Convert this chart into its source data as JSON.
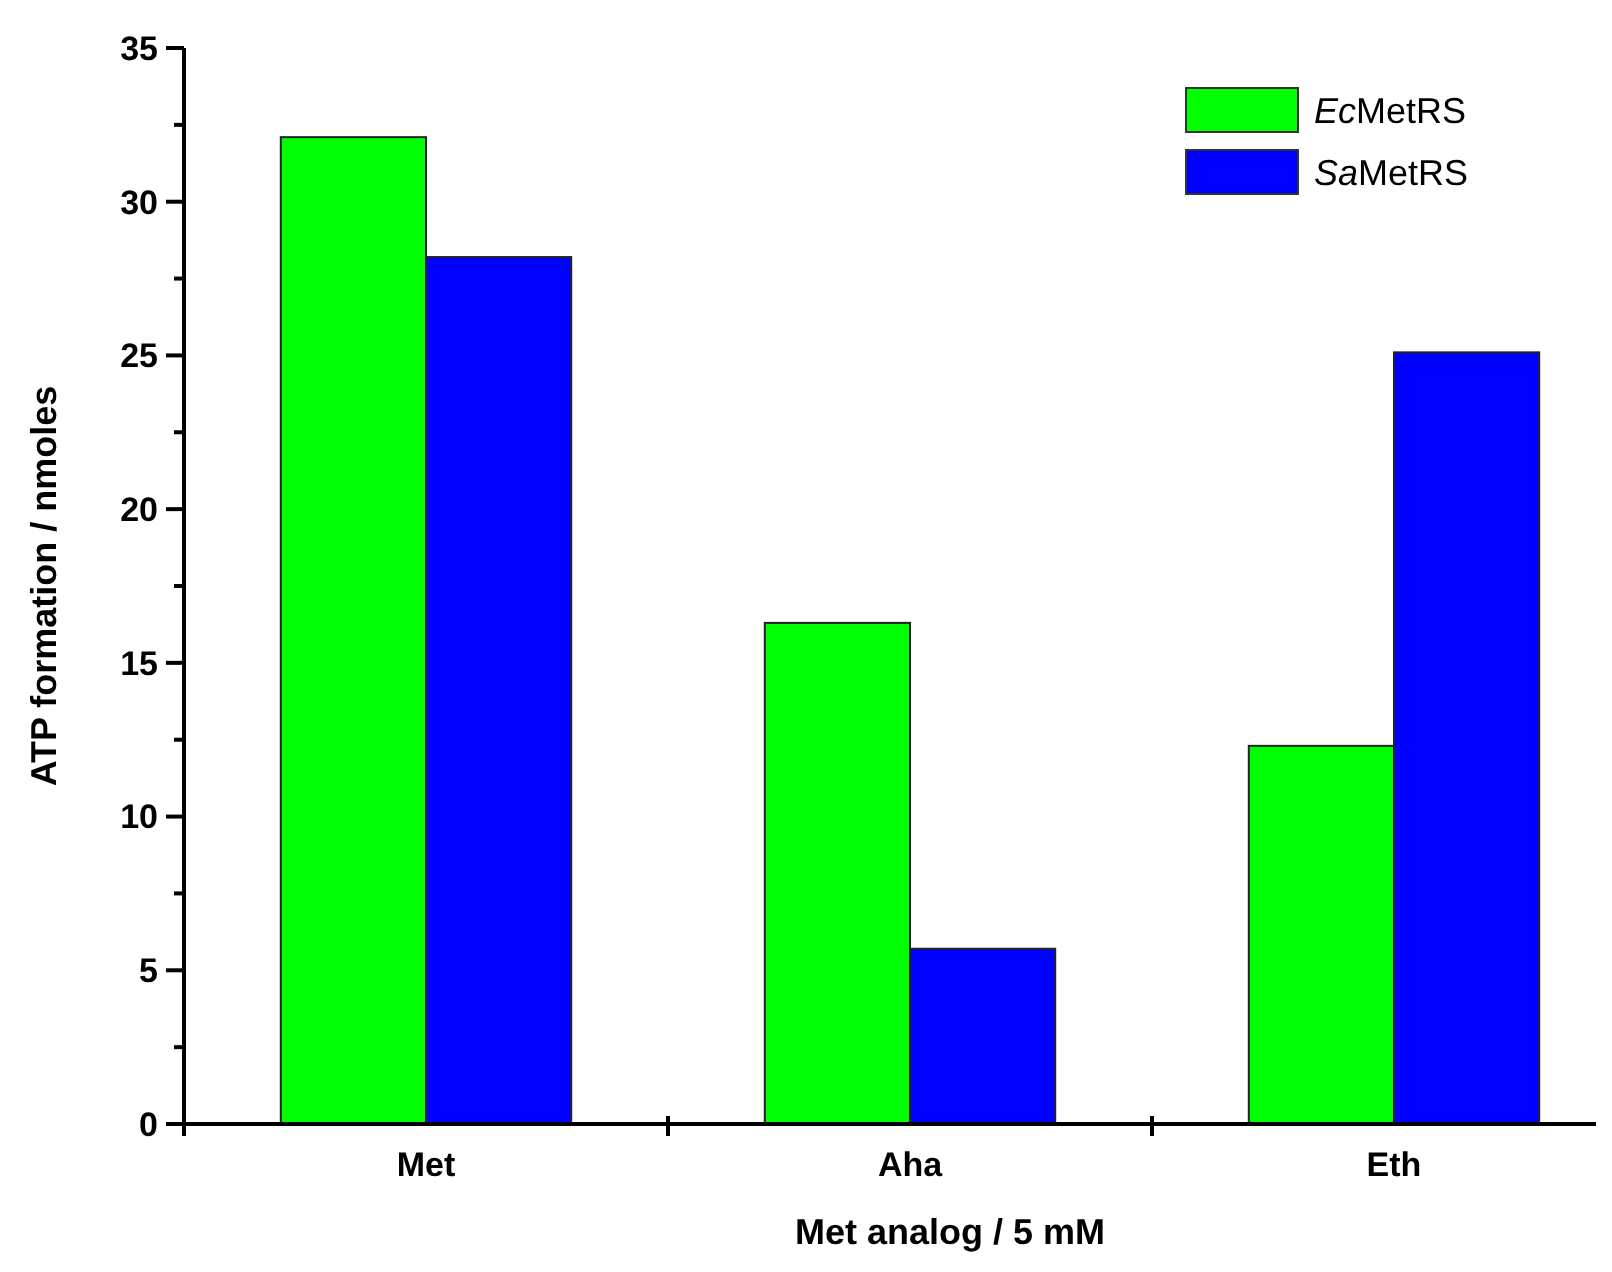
{
  "chart_data": {
    "type": "bar",
    "xlabel": "Met analog / 5 mM",
    "ylabel": "ATP formation / nmoles",
    "categories": [
      "Met",
      "Aha",
      "Eth"
    ],
    "series": [
      {
        "name": "EcMetRS",
        "color": "#00ff00",
        "values": [
          32.1,
          16.3,
          12.3
        ]
      },
      {
        "name": "SaMetRS",
        "color": "#0000ff",
        "values": [
          28.2,
          5.7,
          25.1
        ]
      }
    ],
    "ylim": [
      0,
      35
    ],
    "yticks": [
      0,
      {
        "value": 2.5,
        "label": null
      },
      5,
      {
        "value": 7.5,
        "label": null
      },
      10,
      {
        "value": 12.5,
        "label": null
      },
      15,
      {
        "value": 17.5,
        "label": null
      },
      20,
      {
        "value": 22.5,
        "label": null
      },
      25,
      {
        "value": 27.5,
        "label": null
      },
      30,
      {
        "value": 32.5,
        "label": null
      },
      35
    ],
    "legend": "top right",
    "grid": false
  }
}
